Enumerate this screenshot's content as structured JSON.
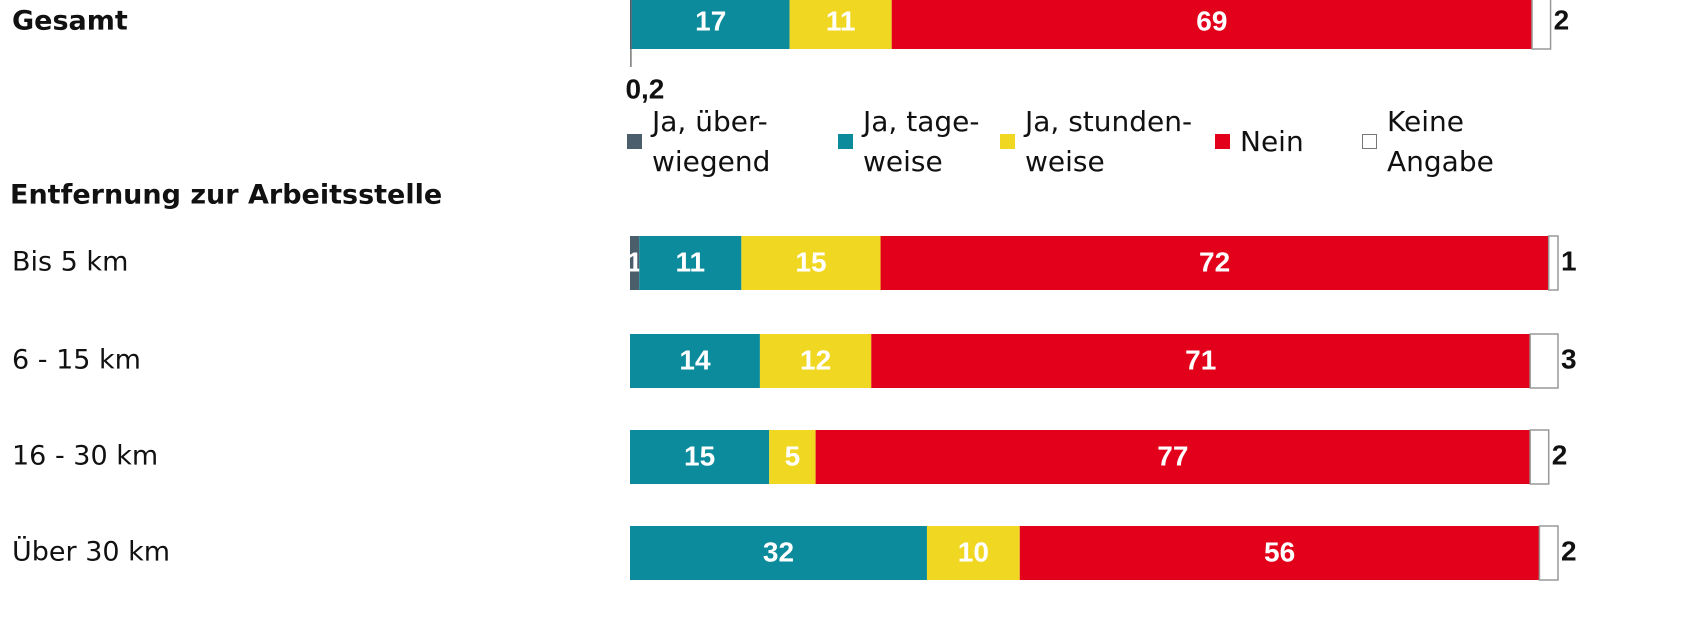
{
  "chart_data": {
    "type": "stacked-bar-horizontal",
    "categories": [
      "Gesamt",
      "Bis 5 km",
      "6 - 15 km",
      "16 - 30 km",
      "Über 30 km"
    ],
    "section_label": "Entfernung zur Arbeitsstelle",
    "series": [
      {
        "name": "Ja, über-\nwiegend",
        "color": "#4b5e6b",
        "values": [
          0.2,
          1,
          null,
          null,
          null
        ],
        "value_labels": [
          "0,2",
          "1",
          null,
          null,
          null
        ]
      },
      {
        "name": "Ja, tage-\nweise",
        "color": "#0b8b9c",
        "values": [
          17,
          11,
          14,
          15,
          32
        ]
      },
      {
        "name": "Ja, stunden-\nweise",
        "color": "#f0d722",
        "values": [
          11,
          15,
          12,
          5,
          10
        ]
      },
      {
        "name": "Nein",
        "color": "#e2001a",
        "values": [
          69,
          72,
          71,
          77,
          56
        ]
      },
      {
        "name": "Keine\nAngabe",
        "color": "#ffffff",
        "values": [
          2,
          1,
          3,
          2,
          2
        ]
      }
    ]
  }
}
